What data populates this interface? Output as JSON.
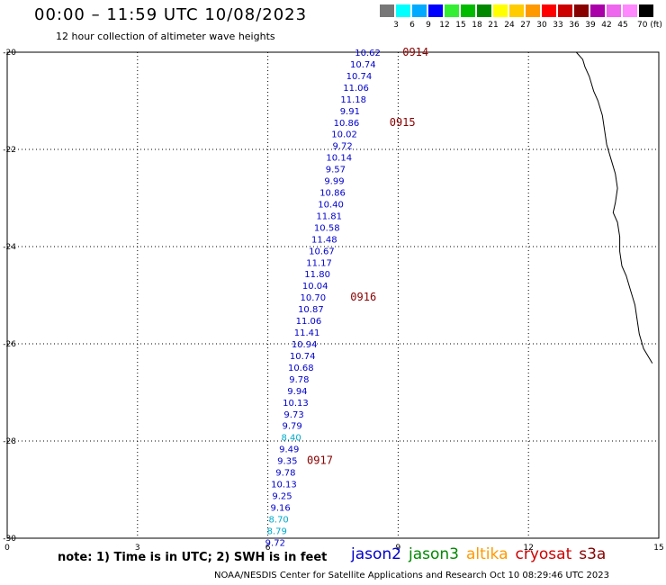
{
  "header": {
    "title": "00:00 – 11:59 UTC 10/08/2023",
    "subtitle": "12 hour collection of altimeter wave heights"
  },
  "color_scale": {
    "labels": [
      "3",
      "6",
      "9",
      "12",
      "15",
      "18",
      "21",
      "24",
      "27",
      "30",
      "33",
      "36",
      "39",
      "42",
      "45",
      "70 (ft)"
    ],
    "colors": [
      "#777777",
      "#00ffff",
      "#00aaff",
      "#0000ff",
      "#33ee33",
      "#00bb00",
      "#008800",
      "#ffff00",
      "#ffcc00",
      "#ff9900",
      "#ff0000",
      "#cc0000",
      "#880000",
      "#aa00aa",
      "#ee66ee",
      "#ff88ff",
      "#000000"
    ]
  },
  "footer": {
    "note": "note: 1) Time is in UTC; 2) SWH is in feet",
    "satellites": [
      {
        "name": "jason2",
        "color": "#0000cc"
      },
      {
        "name": "jason3",
        "color": "#008800"
      },
      {
        "name": "altika",
        "color": "#ff9900"
      },
      {
        "name": "cryosat",
        "color": "#cc0000"
      },
      {
        "name": "s3a",
        "color": "#880000"
      }
    ],
    "credit": "NOAA/NESDIS Center for Satellite Applications and Research    Oct 10 08:29:46 UTC 2023"
  },
  "chart_data": {
    "type": "scatter",
    "title": "12 hour collection of altimeter wave heights",
    "xlabel": "",
    "ylabel": "",
    "xlim": [
      0,
      15
    ],
    "ylim": [
      -30,
      -20
    ],
    "xticks": [
      "0",
      "3",
      "6",
      "9",
      "12",
      "15"
    ],
    "yticks": [
      "-20",
      "-22",
      "-24",
      "-26",
      "-28",
      "-30"
    ],
    "grid": true,
    "points": [
      {
        "x": 8.3,
        "y": -20.0,
        "value": "10.62",
        "color": "#0000cc"
      },
      {
        "x": 8.19,
        "y": -20.24,
        "value": "10.74",
        "color": "#0000cc"
      },
      {
        "x": 8.1,
        "y": -20.48,
        "value": "10.74",
        "color": "#0000cc"
      },
      {
        "x": 8.03,
        "y": -20.72,
        "value": "11.06",
        "color": "#0000cc"
      },
      {
        "x": 7.97,
        "y": -20.96,
        "value": "11.18",
        "color": "#0000cc"
      },
      {
        "x": 7.89,
        "y": -21.2,
        "value": "9.91",
        "color": "#0000cc"
      },
      {
        "x": 7.81,
        "y": -21.44,
        "value": "10.86",
        "color": "#0000cc"
      },
      {
        "x": 7.76,
        "y": -21.68,
        "value": "10.02",
        "color": "#0000cc"
      },
      {
        "x": 7.72,
        "y": -21.92,
        "value": "9.72",
        "color": "#0000cc"
      },
      {
        "x": 7.64,
        "y": -22.16,
        "value": "10.14",
        "color": "#0000cc"
      },
      {
        "x": 7.56,
        "y": -22.4,
        "value": "9.57",
        "color": "#0000cc"
      },
      {
        "x": 7.53,
        "y": -22.64,
        "value": "9.99",
        "color": "#0000cc"
      },
      {
        "x": 7.49,
        "y": -22.88,
        "value": "10.86",
        "color": "#0000cc"
      },
      {
        "x": 7.45,
        "y": -23.12,
        "value": "10.40",
        "color": "#0000cc"
      },
      {
        "x": 7.41,
        "y": -23.36,
        "value": "11.81",
        "color": "#0000cc"
      },
      {
        "x": 7.36,
        "y": -23.6,
        "value": "10.58",
        "color": "#0000cc"
      },
      {
        "x": 7.3,
        "y": -23.84,
        "value": "11.48",
        "color": "#0000cc"
      },
      {
        "x": 7.24,
        "y": -24.08,
        "value": "10.67",
        "color": "#0000cc"
      },
      {
        "x": 7.18,
        "y": -24.32,
        "value": "11.17",
        "color": "#0000cc"
      },
      {
        "x": 7.14,
        "y": -24.56,
        "value": "11.80",
        "color": "#0000cc"
      },
      {
        "x": 7.09,
        "y": -24.8,
        "value": "10.04",
        "color": "#0000cc"
      },
      {
        "x": 7.04,
        "y": -25.04,
        "value": "10.70",
        "color": "#0000cc"
      },
      {
        "x": 6.99,
        "y": -25.28,
        "value": "10.87",
        "color": "#0000cc"
      },
      {
        "x": 6.94,
        "y": -25.52,
        "value": "11.06",
        "color": "#0000cc"
      },
      {
        "x": 6.9,
        "y": -25.76,
        "value": "11.41",
        "color": "#0000cc"
      },
      {
        "x": 6.84,
        "y": -26.0,
        "value": "10.94",
        "color": "#0000cc"
      },
      {
        "x": 6.8,
        "y": -26.24,
        "value": "10.74",
        "color": "#0000cc"
      },
      {
        "x": 6.76,
        "y": -26.48,
        "value": "10.68",
        "color": "#0000cc"
      },
      {
        "x": 6.72,
        "y": -26.72,
        "value": "9.78",
        "color": "#0000cc"
      },
      {
        "x": 6.68,
        "y": -26.96,
        "value": "9.94",
        "color": "#0000cc"
      },
      {
        "x": 6.64,
        "y": -27.2,
        "value": "10.13",
        "color": "#0000cc"
      },
      {
        "x": 6.6,
        "y": -27.44,
        "value": "9.73",
        "color": "#0000cc"
      },
      {
        "x": 6.56,
        "y": -27.68,
        "value": "9.79",
        "color": "#0000cc"
      },
      {
        "x": 6.54,
        "y": -27.92,
        "value": "8.40",
        "color": "#00aacc"
      },
      {
        "x": 6.49,
        "y": -28.16,
        "value": "9.49",
        "color": "#0000cc"
      },
      {
        "x": 6.45,
        "y": -28.4,
        "value": "9.35",
        "color": "#0000cc"
      },
      {
        "x": 6.41,
        "y": -28.64,
        "value": "9.78",
        "color": "#0000cc"
      },
      {
        "x": 6.37,
        "y": -28.88,
        "value": "10.13",
        "color": "#0000cc"
      },
      {
        "x": 6.33,
        "y": -29.12,
        "value": "9.25",
        "color": "#0000cc"
      },
      {
        "x": 6.29,
        "y": -29.36,
        "value": "9.16",
        "color": "#0000cc"
      },
      {
        "x": 6.25,
        "y": -29.6,
        "value": "8.70",
        "color": "#00aacc"
      },
      {
        "x": 6.21,
        "y": -29.84,
        "value": "8.79",
        "color": "#00aacc"
      },
      {
        "x": 6.17,
        "y": -30.08,
        "value": "9.72",
        "color": "#0000cc"
      }
    ],
    "time_labels": [
      {
        "x": 9.1,
        "y": -20.0,
        "text": "0914"
      },
      {
        "x": 8.8,
        "y": -21.44,
        "text": "0915"
      },
      {
        "x": 7.9,
        "y": -25.04,
        "text": "0916"
      },
      {
        "x": 6.9,
        "y": -28.4,
        "text": "0917"
      }
    ],
    "coastline": [
      [
        13.1,
        -20.0
      ],
      [
        13.25,
        -20.15
      ],
      [
        13.3,
        -20.3
      ],
      [
        13.4,
        -20.5
      ],
      [
        13.5,
        -20.8
      ],
      [
        13.6,
        -21.0
      ],
      [
        13.7,
        -21.3
      ],
      [
        13.75,
        -21.6
      ],
      [
        13.8,
        -21.9
      ],
      [
        13.9,
        -22.2
      ],
      [
        14.0,
        -22.5
      ],
      [
        14.05,
        -22.8
      ],
      [
        14.0,
        -23.1
      ],
      [
        13.95,
        -23.3
      ],
      [
        14.05,
        -23.5
      ],
      [
        14.1,
        -23.8
      ],
      [
        14.1,
        -24.1
      ],
      [
        14.15,
        -24.4
      ],
      [
        14.25,
        -24.6
      ],
      [
        14.35,
        -24.9
      ],
      [
        14.45,
        -25.2
      ],
      [
        14.5,
        -25.5
      ],
      [
        14.55,
        -25.8
      ],
      [
        14.65,
        -26.1
      ],
      [
        14.85,
        -26.4
      ]
    ]
  }
}
